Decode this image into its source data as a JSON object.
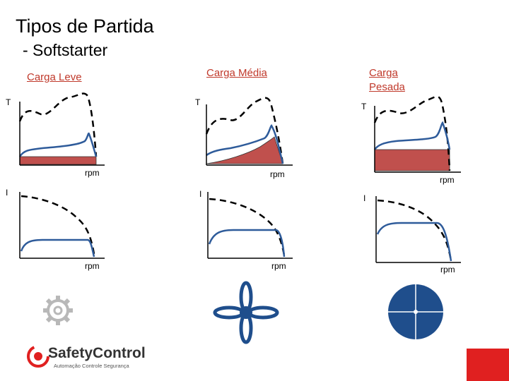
{
  "title": "Tipos de Partida",
  "subtitle": "- Softstarter",
  "loads": [
    {
      "label": "Carga Leve",
      "torque_axis": "T",
      "current_axis": "I",
      "speed_axis_top": "rpm",
      "speed_axis_bottom": "rpm"
    },
    {
      "label": "Carga Média",
      "torque_axis": "T",
      "current_axis": "I",
      "speed_axis_top": "rpm",
      "speed_axis_bottom": "rpm"
    },
    {
      "label": "Carga Pesada",
      "torque_axis": "T",
      "current_axis": "I",
      "speed_axis_top": "rpm",
      "speed_axis_bottom": "rpm"
    }
  ],
  "logo": {
    "name_part1": "Safety",
    "name_part2": "Control",
    "tagline": "Automação Controle Segurança"
  },
  "colors": {
    "load_area": "#c0504d",
    "current_curve": "#2e5b9a",
    "dashed_curve": "#000000",
    "accent": "#e02020",
    "fan": "#1f4e8c"
  },
  "icons": [
    "gear-icon",
    "fan-icon",
    "disc-icon",
    "safety-control-logo",
    "corner-accent"
  ]
}
